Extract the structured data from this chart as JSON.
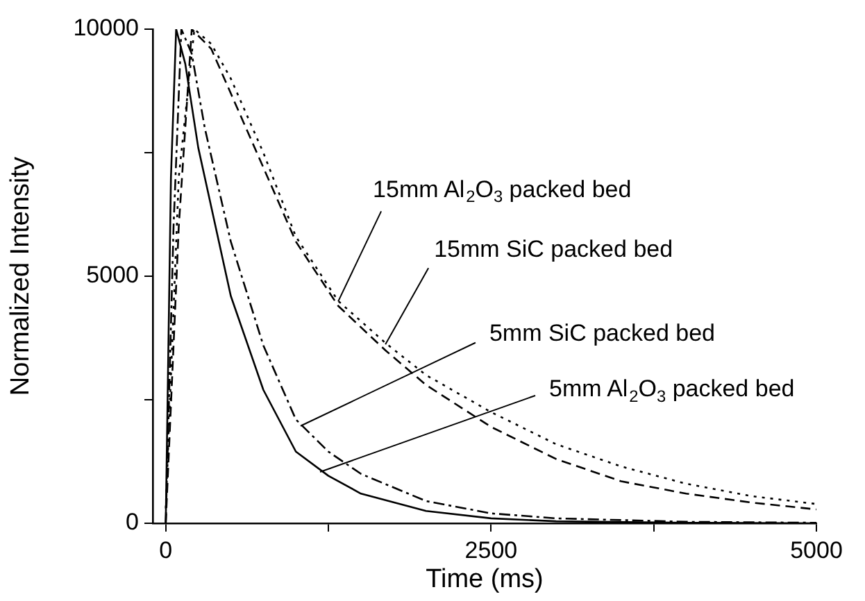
{
  "chart_data": {
    "type": "line",
    "xlabel": "Time (ms)",
    "ylabel": "Normalized Intensity",
    "xlim": [
      -100,
      5000
    ],
    "ylim": [
      0,
      10000
    ],
    "xticks": [
      0,
      {
        "value": 1250,
        "label": null
      },
      2500,
      {
        "value": 3750,
        "label": null
      },
      5000
    ],
    "yticks": [
      0,
      {
        "value": 2500,
        "label": null
      },
      5000,
      {
        "value": 7500,
        "label": null
      },
      10000
    ],
    "grid": false,
    "legend": false,
    "marker": "none",
    "series": [
      {
        "color": "#000000",
        "line_style": "solid",
        "x": [
          0,
          40,
          80,
          150,
          250,
          500,
          750,
          1000,
          1250,
          1500,
          2000,
          2500,
          3000,
          4000,
          5000
        ],
        "values": [
          0,
          7000,
          10000,
          9300,
          7600,
          4600,
          2700,
          1450,
          960,
          600,
          250,
          100,
          40,
          10,
          0
        ]
      },
      {
        "color": "#000000",
        "line_style": "dashdot",
        "x": [
          0,
          60,
          120,
          200,
          300,
          500,
          750,
          1000,
          1250,
          1500,
          2000,
          2500,
          3000,
          4000,
          5000
        ],
        "values": [
          0,
          6000,
          10000,
          9500,
          8000,
          5700,
          3600,
          2100,
          1450,
          1000,
          450,
          200,
          100,
          30,
          10
        ]
      },
      {
        "color": "#000000",
        "line_style": "dashed",
        "x": [
          0,
          100,
          200,
          350,
          500,
          750,
          1000,
          1325,
          1688,
          2000,
          2500,
          3000,
          3500,
          4000,
          4500,
          5000
        ],
        "values": [
          0,
          6000,
          10000,
          9600,
          8700,
          7200,
          5700,
          4400,
          3500,
          2800,
          1950,
          1300,
          850,
          600,
          420,
          280
        ]
      },
      {
        "color": "#000000",
        "line_style": "dotted",
        "x": [
          0,
          100,
          220,
          350,
          500,
          750,
          1000,
          1325,
          1688,
          2000,
          2500,
          3000,
          3500,
          4000,
          4500,
          5000
        ],
        "values": [
          300,
          7000,
          10000,
          9700,
          9000,
          7500,
          5800,
          4500,
          3650,
          3000,
          2250,
          1600,
          1150,
          800,
          550,
          390
        ]
      }
    ],
    "annotations": [
      {
        "text": "15mm Al$_{2}$O$_{3}$ packed bed",
        "x": 1325,
        "y": 4490
      },
      {
        "text": "15mm SiC packed bed",
        "x": 1688,
        "y": 3620
      },
      {
        "text": "5mm SiC packed bed",
        "x": 1036,
        "y": 1970
      },
      {
        "text": "5mm Al$_{2}$O$_{3}$ packed bed",
        "x": 1186,
        "y": 1040
      }
    ]
  }
}
